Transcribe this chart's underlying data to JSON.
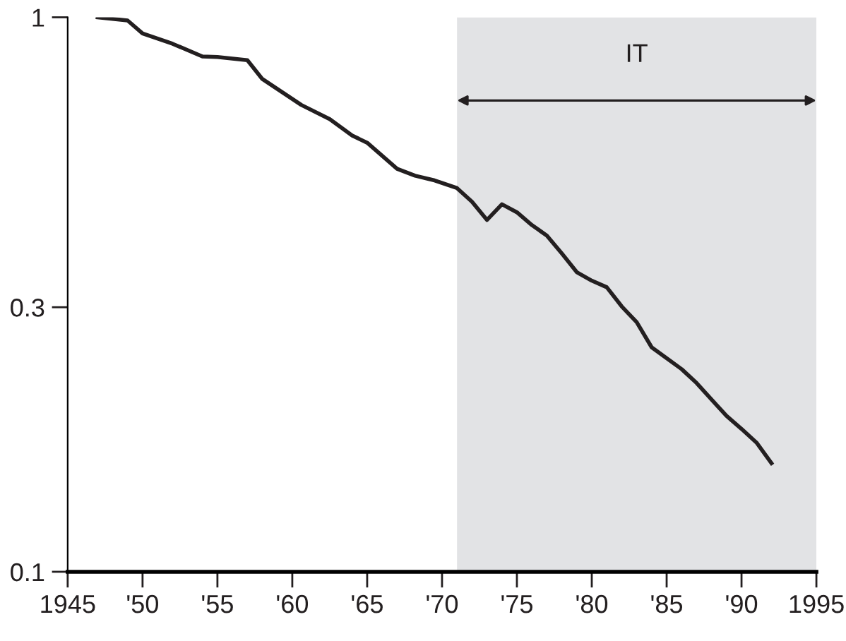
{
  "chart_data": {
    "type": "line",
    "log": "y",
    "xlim": [
      1945,
      1995
    ],
    "ylim": [
      0.1,
      1
    ],
    "xticks": [
      1945,
      {
        "value": 1950,
        "label": "'50"
      },
      {
        "value": 1955,
        "label": "'55"
      },
      {
        "value": 1960,
        "label": "'60"
      },
      {
        "value": 1965,
        "label": "'65"
      },
      {
        "value": 1970,
        "label": "'70"
      },
      {
        "value": 1975,
        "label": "'75"
      },
      {
        "value": 1980,
        "label": "'80"
      },
      {
        "value": 1985,
        "label": "'85"
      },
      {
        "value": 1990,
        "label": "'90"
      },
      1995
    ],
    "yticks": [
      0.1,
      0.3,
      1
    ],
    "grid": false,
    "legend": false,
    "bands": [
      {
        "axis": "x",
        "from": 1971,
        "to": 1995,
        "label": "IT",
        "color": "#e2e3e5"
      }
    ],
    "series": [
      {
        "color": "#231f20",
        "x": [
          1947,
          1949,
          1950,
          1952,
          1954,
          1955,
          1957,
          1958,
          1960.6,
          1962.5,
          1964,
          1965,
          1967,
          1968.2,
          1969.5,
          1971,
          1972,
          1973,
          1974,
          1975,
          1976,
          1977,
          1978,
          1979,
          1980,
          1981,
          1982,
          1983,
          1984,
          1986,
          1987,
          1989,
          1990,
          1991,
          1992
        ],
        "values": [
          1.0,
          0.987,
          0.935,
          0.896,
          0.85,
          0.848,
          0.837,
          0.774,
          0.695,
          0.655,
          0.612,
          0.594,
          0.533,
          0.518,
          0.508,
          0.492,
          0.465,
          0.431,
          0.46,
          0.445,
          0.422,
          0.404,
          0.375,
          0.347,
          0.335,
          0.326,
          0.301,
          0.282,
          0.254,
          0.232,
          0.219,
          0.191,
          0.181,
          0.171,
          0.157
        ]
      }
    ]
  }
}
